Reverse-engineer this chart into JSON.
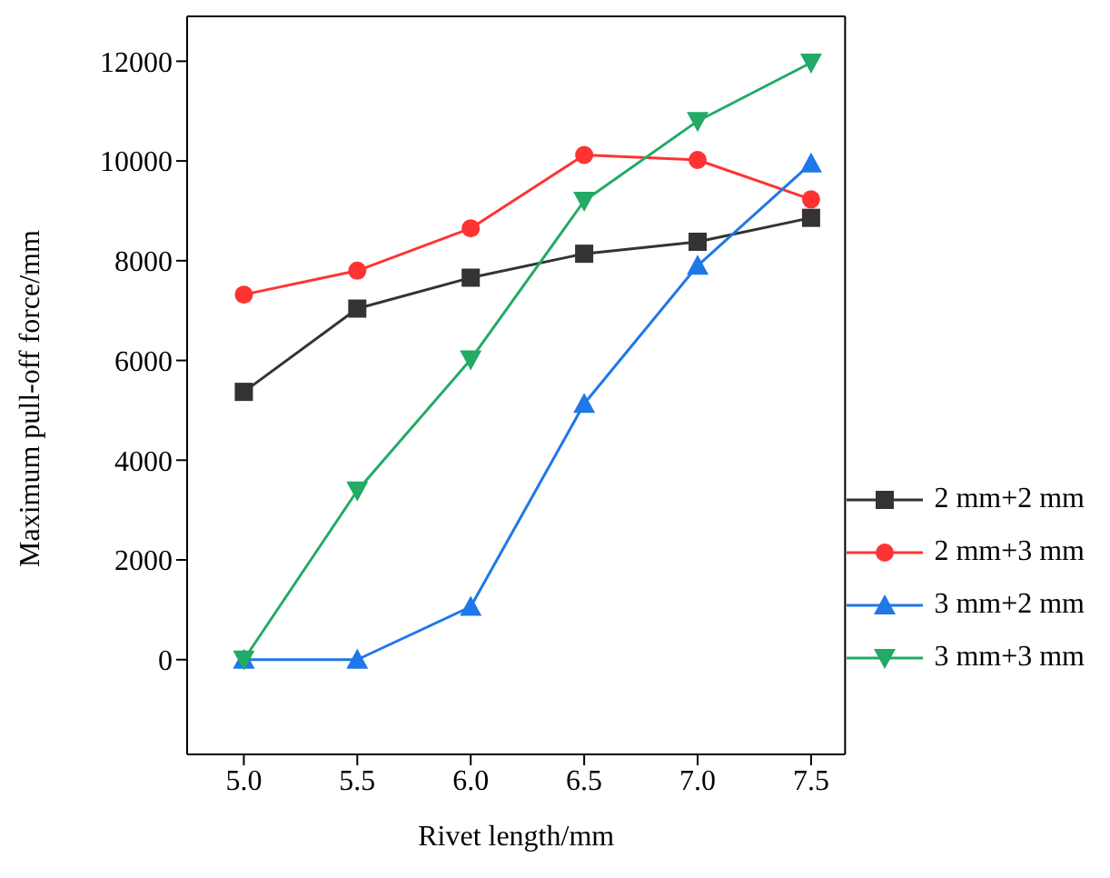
{
  "chart_data": {
    "type": "line",
    "xlabel": "Rivet length/mm",
    "ylabel": "Maximum pull-off force/mm",
    "x": [
      5.0,
      5.5,
      6.0,
      6.5,
      7.0,
      7.5
    ],
    "series": [
      {
        "name": "2 mm+2 mm",
        "color": "#333333",
        "marker": "square",
        "values": [
          5370,
          7040,
          7660,
          8140,
          8380,
          8860
        ]
      },
      {
        "name": "2 mm+3 mm",
        "color": "#ff3333",
        "marker": "circle",
        "values": [
          7320,
          7800,
          8650,
          10120,
          10020,
          9230
        ]
      },
      {
        "name": "3 mm+2 mm",
        "color": "#1f77e8",
        "marker": "triangle",
        "values": [
          0,
          0,
          1060,
          5130,
          7900,
          9950
        ]
      },
      {
        "name": "3 mm+3 mm",
        "color": "#22aa66",
        "marker": "triangle-down",
        "values": [
          0,
          3390,
          6020,
          9200,
          10800,
          11970
        ]
      }
    ],
    "xlim": [
      4.75,
      7.65
    ],
    "xticks": [
      {
        "value": 5,
        "label": "5.0"
      },
      {
        "value": 5.5,
        "label": "5.5"
      },
      {
        "value": 6,
        "label": "6.0"
      },
      {
        "value": 6.5,
        "label": "6.5"
      },
      {
        "value": 7,
        "label": "7.0"
      },
      {
        "value": 7.5,
        "label": "7.5"
      }
    ],
    "ylim": [
      -1900,
      12900
    ],
    "yticks": [
      0,
      2000,
      4000,
      6000,
      8000,
      10000,
      12000
    ],
    "grid": false,
    "legend": "right",
    "line_style": "solid"
  }
}
